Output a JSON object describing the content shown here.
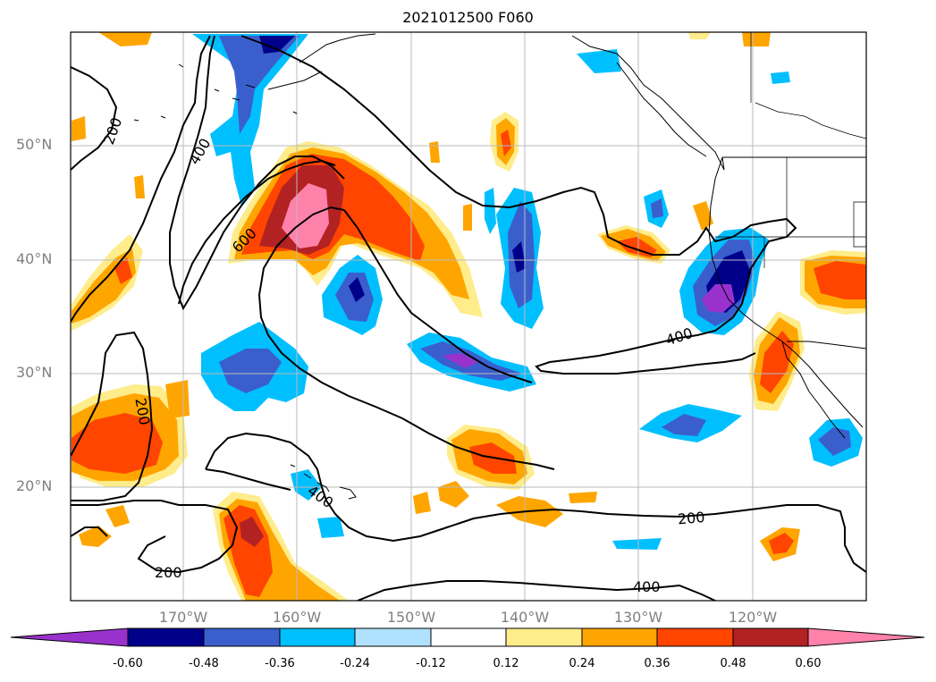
{
  "title": "2021012500 F060",
  "lat_labels": [
    "50°N",
    "40°N",
    "30°N",
    "20°N"
  ],
  "lon_labels": [
    "170°W",
    "160°W",
    "150°W",
    "140°W",
    "130°W",
    "120°W"
  ],
  "contour_labels": [
    "200",
    "400",
    "600",
    "400",
    "200",
    "400",
    "200",
    "400",
    "200"
  ],
  "colorbar": {
    "labels": [
      "-0.60",
      "-0.48",
      "-0.36",
      "-0.24",
      "-0.12",
      "0.12",
      "0.24",
      "0.36",
      "0.48",
      "0.60"
    ],
    "colors": [
      "#9932cc",
      "#00008b",
      "#3a5fcd",
      "#00bfff",
      "#b0e2ff",
      "#ffffff",
      "#ffec8b",
      "#ffa500",
      "#ff4500",
      "#b22222",
      "#ff82ab"
    ]
  },
  "palette": {
    "land_outline": "#000000",
    "grid": "#bbbbbb",
    "contour": "#000000",
    "axis_label": "#808080"
  }
}
